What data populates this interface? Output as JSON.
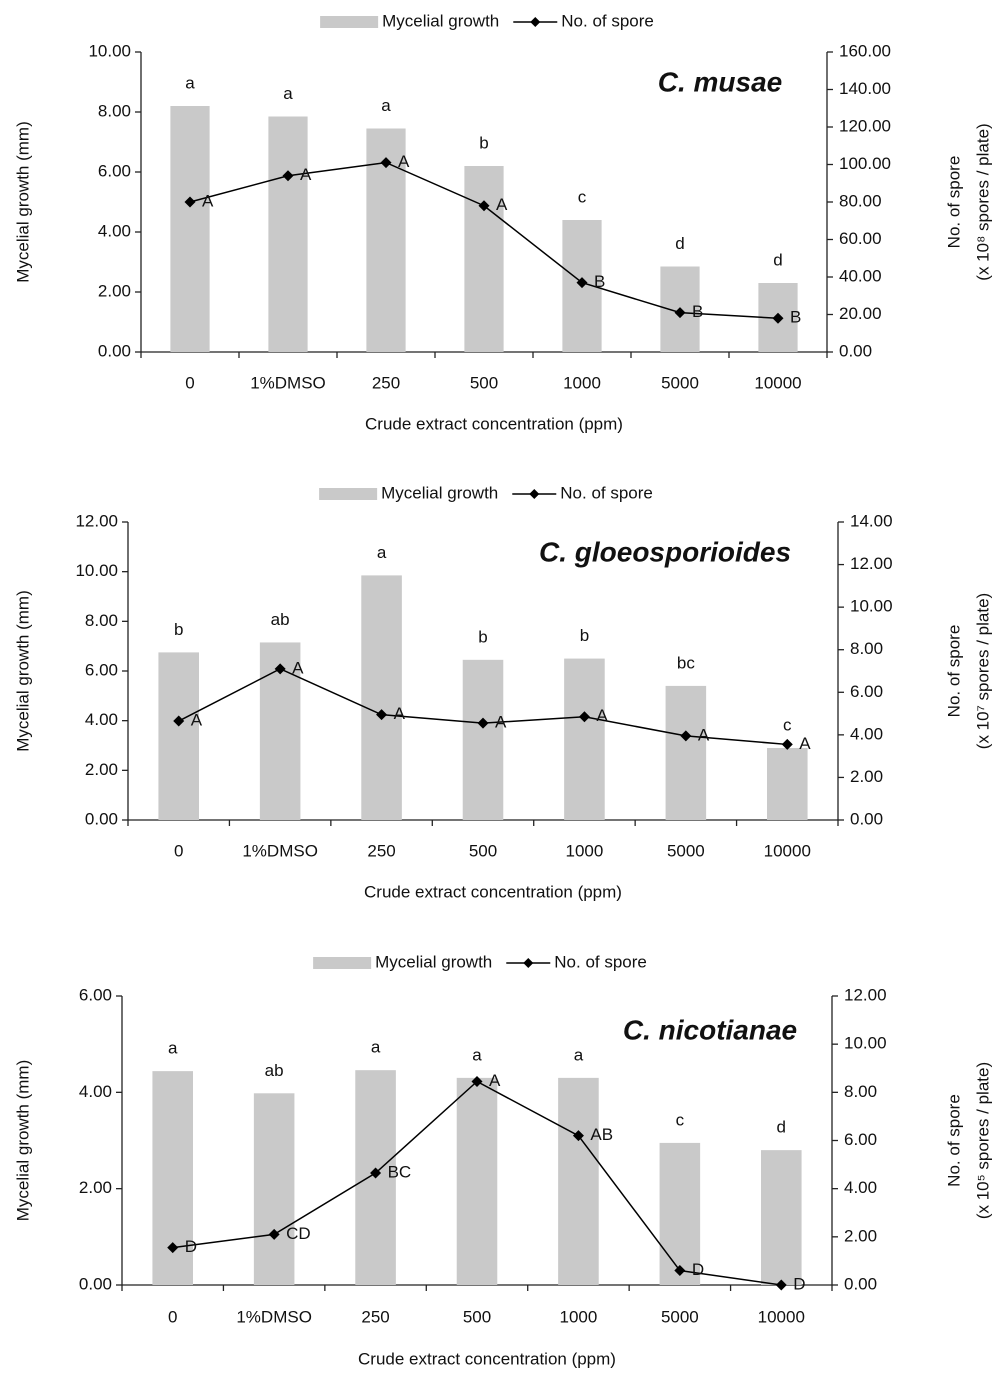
{
  "chart_data": [
    {
      "type": "bar_line",
      "title": "C. musae",
      "categories": [
        "0",
        "1%DMSO",
        "250",
        "500",
        "1000",
        "5000",
        "10000"
      ],
      "xlabel": "Crude extract concentration  (ppm)",
      "ylabel": "Mycelial growth  (mm)",
      "y2label": "No. of spore",
      "y2label_unit": "(x 10⁸ spores / plate)",
      "ylim": [
        0,
        10
      ],
      "yticks": [
        {
          "value": 0,
          "label": "0.00"
        },
        {
          "value": 2,
          "label": "2.00"
        },
        {
          "value": 4,
          "label": "4.00"
        },
        {
          "value": 6,
          "label": "6.00"
        },
        {
          "value": 8,
          "label": "8.00"
        },
        {
          "value": 10,
          "label": "10.00"
        }
      ],
      "y2lim": [
        0,
        160
      ],
      "y2ticks": [
        {
          "value": 0,
          "label": "0.00"
        },
        {
          "value": 20,
          "label": "20.00"
        },
        {
          "value": 40,
          "label": "40.00"
        },
        {
          "value": 60,
          "label": "60.00"
        },
        {
          "value": 80,
          "label": "80.00"
        },
        {
          "value": 100,
          "label": "100.00"
        },
        {
          "value": 120,
          "label": "120.00"
        },
        {
          "value": 140,
          "label": "140.00"
        },
        {
          "value": 160,
          "label": "160.00"
        }
      ],
      "legend": "top",
      "series": [
        {
          "name": "Mycelial growth",
          "type": "bar",
          "color": "#c9c9c9",
          "values": [
            8.2,
            7.85,
            7.45,
            6.2,
            4.4,
            2.85,
            2.3
          ],
          "letters": [
            "a",
            "a",
            "a",
            "b",
            "c",
            "d",
            "d"
          ]
        },
        {
          "name": "No. of spore",
          "type": "line",
          "axis": "y2",
          "color": "#000000",
          "values": [
            80,
            94,
            101,
            78,
            37,
            21,
            18
          ],
          "letters": [
            "A",
            "A",
            "A",
            "A",
            "B",
            "B",
            "B"
          ]
        }
      ]
    },
    {
      "type": "bar_line",
      "title": "C. gloeosporioides",
      "categories": [
        "0",
        "1%DMSO",
        "250",
        "500",
        "1000",
        "5000",
        "10000"
      ],
      "xlabel": "Crude extract concentration  (ppm)",
      "ylabel": "Mycelial growth  (mm)",
      "y2label": "No. of spore",
      "y2label_unit": "(x 10⁷ spores / plate)",
      "ylim": [
        0,
        12
      ],
      "yticks": [
        {
          "value": 0,
          "label": "0.00"
        },
        {
          "value": 2,
          "label": "2.00"
        },
        {
          "value": 4,
          "label": "4.00"
        },
        {
          "value": 6,
          "label": "6.00"
        },
        {
          "value": 8,
          "label": "8.00"
        },
        {
          "value": 10,
          "label": "10.00"
        },
        {
          "value": 12,
          "label": "12.00"
        }
      ],
      "y2lim": [
        0,
        14
      ],
      "y2ticks": [
        {
          "value": 0,
          "label": "0.00"
        },
        {
          "value": 2,
          "label": "2.00"
        },
        {
          "value": 4,
          "label": "4.00"
        },
        {
          "value": 6,
          "label": "6.00"
        },
        {
          "value": 8,
          "label": "8.00"
        },
        {
          "value": 10,
          "label": "10.00"
        },
        {
          "value": 12,
          "label": "12.00"
        },
        {
          "value": 14,
          "label": "14.00"
        }
      ],
      "legend": "top",
      "series": [
        {
          "name": "Mycelial growth",
          "type": "bar",
          "color": "#c9c9c9",
          "values": [
            6.75,
            7.15,
            9.85,
            6.45,
            6.5,
            5.4,
            2.9
          ],
          "letters": [
            "b",
            "ab",
            "a",
            "b",
            "b",
            "bc",
            "c"
          ]
        },
        {
          "name": "No. of spore",
          "type": "line",
          "axis": "y2",
          "color": "#000000",
          "values": [
            4.65,
            7.1,
            4.95,
            4.55,
            4.85,
            3.95,
            3.55
          ],
          "letters": [
            "A",
            "A",
            "A",
            "A",
            "A",
            "A",
            "A"
          ]
        }
      ]
    },
    {
      "type": "bar_line",
      "title": "C. nicotianae",
      "categories": [
        "0",
        "1%DMSO",
        "250",
        "500",
        "1000",
        "5000",
        "10000"
      ],
      "xlabel": "Crude extract concentration  (ppm)",
      "ylabel": "Mycelial growth  (mm)",
      "y2label": "No. of spore",
      "y2label_unit": "(x 10⁵ spores / plate)",
      "ylim": [
        0,
        6
      ],
      "yticks": [
        {
          "value": 0,
          "label": "0.00"
        },
        {
          "value": 2,
          "label": "2.00"
        },
        {
          "value": 4,
          "label": "4.00"
        },
        {
          "value": 6,
          "label": "6.00"
        }
      ],
      "y2lim": [
        0,
        12
      ],
      "y2ticks": [
        {
          "value": 0,
          "label": "0.00"
        },
        {
          "value": 2,
          "label": "2.00"
        },
        {
          "value": 4,
          "label": "4.00"
        },
        {
          "value": 6,
          "label": "6.00"
        },
        {
          "value": 8,
          "label": "8.00"
        },
        {
          "value": 10,
          "label": "10.00"
        },
        {
          "value": 12,
          "label": "12.00"
        }
      ],
      "legend": "top",
      "series": [
        {
          "name": "Mycelial growth",
          "type": "bar",
          "color": "#c9c9c9",
          "values": [
            4.44,
            3.98,
            4.46,
            4.3,
            4.3,
            2.95,
            2.8
          ],
          "letters": [
            "a",
            "ab",
            "a",
            "a",
            "a",
            "c",
            "d"
          ]
        },
        {
          "name": "No. of spore",
          "type": "line",
          "axis": "y2",
          "color": "#000000",
          "values": [
            1.55,
            2.1,
            4.65,
            8.45,
            6.2,
            0.6,
            0
          ],
          "letters": [
            "D",
            "CD",
            "BC",
            "A",
            "AB",
            "D",
            "D"
          ]
        }
      ]
    }
  ]
}
